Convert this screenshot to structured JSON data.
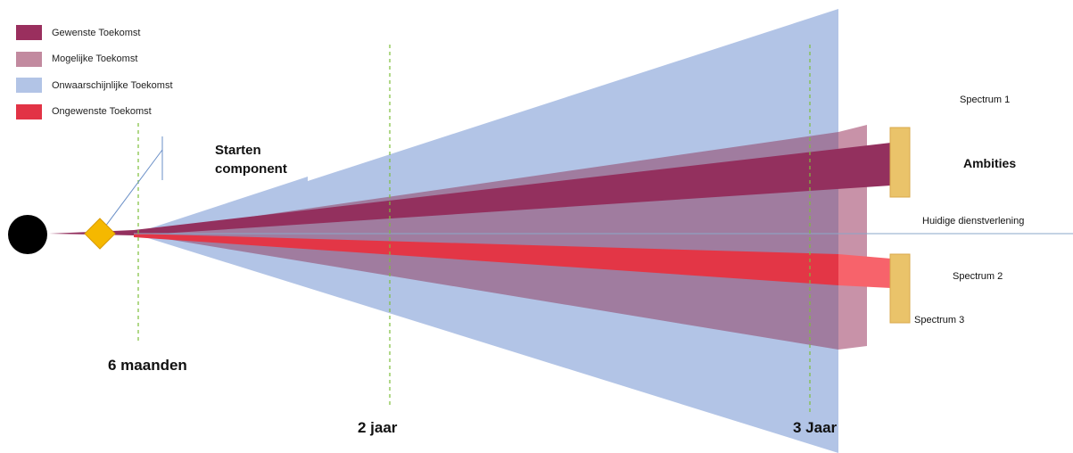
{
  "legend": [
    {
      "label": "Gewenste Toekomst",
      "color": "#9a2f5e"
    },
    {
      "label": "Mogelijke Toekomst",
      "color": "#c28a9f"
    },
    {
      "label": "Onwaarschijnlijke Toekomst",
      "color": "#b2c4e6"
    },
    {
      "label": "Ongewenste Toekomst",
      "color": "#e23345"
    }
  ],
  "labels": {
    "starten_line1": "Starten",
    "starten_line2": "component",
    "ambities": "Ambities",
    "spectrum1": "Spectrum 1",
    "spectrum2": "Spectrum 2",
    "spectrum3": "Spectrum 3",
    "huidige": "Huidige dienstverlening",
    "time_6m": "6 maanden",
    "time_2j": "2 jaar",
    "time_3j": "3 Jaar"
  },
  "colors": {
    "gewenst": "#93305e",
    "mogelijk": "#9b6f9f",
    "mogelijk_end": "#c892a8",
    "onwaarschijnlijk": "#b2c4e6",
    "ongewenst": "#e33646",
    "ongewenst_end": "#f55a63",
    "marker": "#eac36a",
    "milestone": "#f5b800",
    "guide": "#7dbf3a",
    "baseline": "#8aa7c8",
    "origin": "#000000"
  }
}
